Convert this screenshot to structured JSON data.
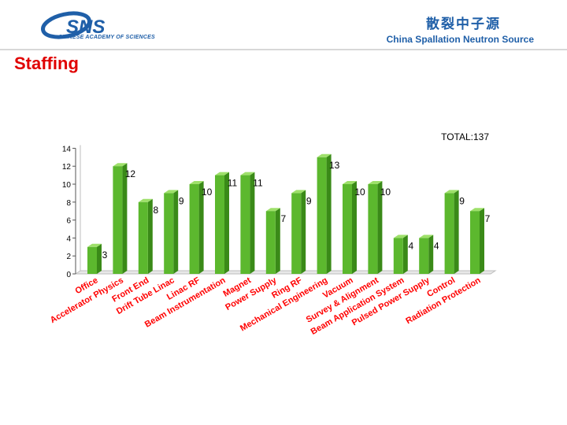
{
  "header": {
    "logo_text": "SNS",
    "logo_sub": "CHINESE ACADEMY OF SCIENCES",
    "name_cn": "散裂中子源",
    "name_en": "China Spallation Neutron Source"
  },
  "slide": {
    "title": "Staffing"
  },
  "colors": {
    "bar": "#5cb82e",
    "title": "#e00000",
    "brand": "#1f5fa8",
    "label": "#ff0000"
  },
  "chart_data": {
    "type": "bar",
    "total_label": "TOTAL:137",
    "categories": [
      "Office",
      "Accelerator Physics",
      "Front End",
      "Drift Tube Linac",
      "Linac RF",
      "Beam Instrumentation",
      "Magnet",
      "Power Supply",
      "Ring RF",
      "Mechanical Engineering",
      "Vacuum",
      "Survey & Alignment",
      "Beam Application System",
      "Pulsed Power Supply",
      "Control",
      "Radiation Protection"
    ],
    "values": [
      3,
      12,
      8,
      9,
      10,
      11,
      11,
      7,
      9,
      13,
      10,
      10,
      4,
      4,
      9,
      7
    ],
    "value_labels": [
      "3",
      "12",
      "8",
      "9",
      "10",
      "11",
      "11",
      "7",
      "9",
      "13",
      "10",
      "10",
      "4",
      "4",
      "9",
      "7"
    ],
    "ylim": [
      0,
      14
    ],
    "yticks": [
      "0",
      "2",
      "4",
      "6",
      "8",
      "10",
      "12",
      "14"
    ],
    "grid": false,
    "style": "3d"
  }
}
